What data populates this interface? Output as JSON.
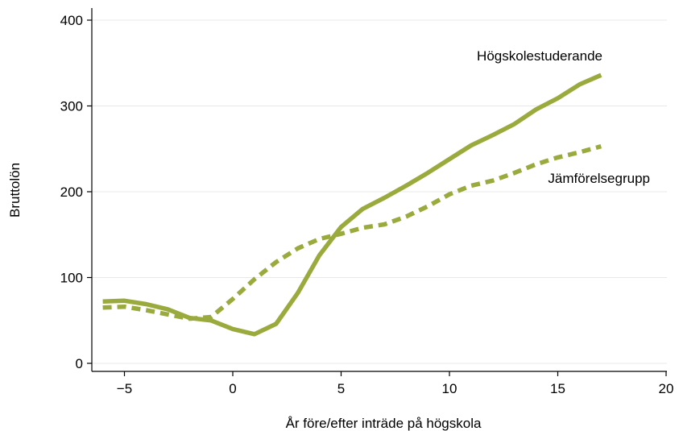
{
  "chart_data": {
    "type": "line",
    "xlabel": "År före/efter inträde på högskola",
    "ylabel": "Bruttolön",
    "xlim": [
      -6,
      20
    ],
    "ylim": [
      -10,
      410
    ],
    "xticks": [
      -5,
      0,
      5,
      10,
      15,
      20
    ],
    "yticks": [
      0,
      100,
      200,
      300,
      400
    ],
    "xtick_labels": [
      "−5",
      "0",
      "5",
      "10",
      "15",
      "20"
    ],
    "ytick_labels": [
      "0",
      "100",
      "200",
      "300",
      "400"
    ],
    "grid": "horizontal",
    "legend": "none (direct labels)",
    "colors": {
      "line": "#9aaa3c",
      "grid": "#e8e8e8",
      "axis": "#000000"
    },
    "series": [
      {
        "name": "Högskolestuderande",
        "style": "solid",
        "x": [
          -6,
          -5,
          -4,
          -3,
          -2,
          -1,
          0,
          1,
          2,
          3,
          4,
          5,
          6,
          7,
          8,
          9,
          10,
          11,
          12,
          13,
          14,
          15,
          16,
          17
        ],
        "y": [
          72,
          73,
          69,
          63,
          53,
          50,
          40,
          34,
          46,
          82,
          126,
          159,
          180,
          193,
          207,
          222,
          238,
          254,
          266,
          279,
          296,
          309,
          325,
          336
        ]
      },
      {
        "name": "Jämförelsegrupp",
        "style": "dashed",
        "x": [
          -6,
          -5,
          -4,
          -3,
          -2,
          -1,
          0,
          1,
          2,
          3,
          4,
          5,
          6,
          7,
          8,
          9,
          10,
          11,
          12,
          13,
          14,
          15,
          16,
          17
        ],
        "y": [
          65,
          66,
          62,
          57,
          52,
          54,
          75,
          98,
          118,
          134,
          145,
          151,
          158,
          162,
          171,
          183,
          197,
          207,
          213,
          222,
          232,
          240,
          246,
          253
        ]
      }
    ]
  }
}
